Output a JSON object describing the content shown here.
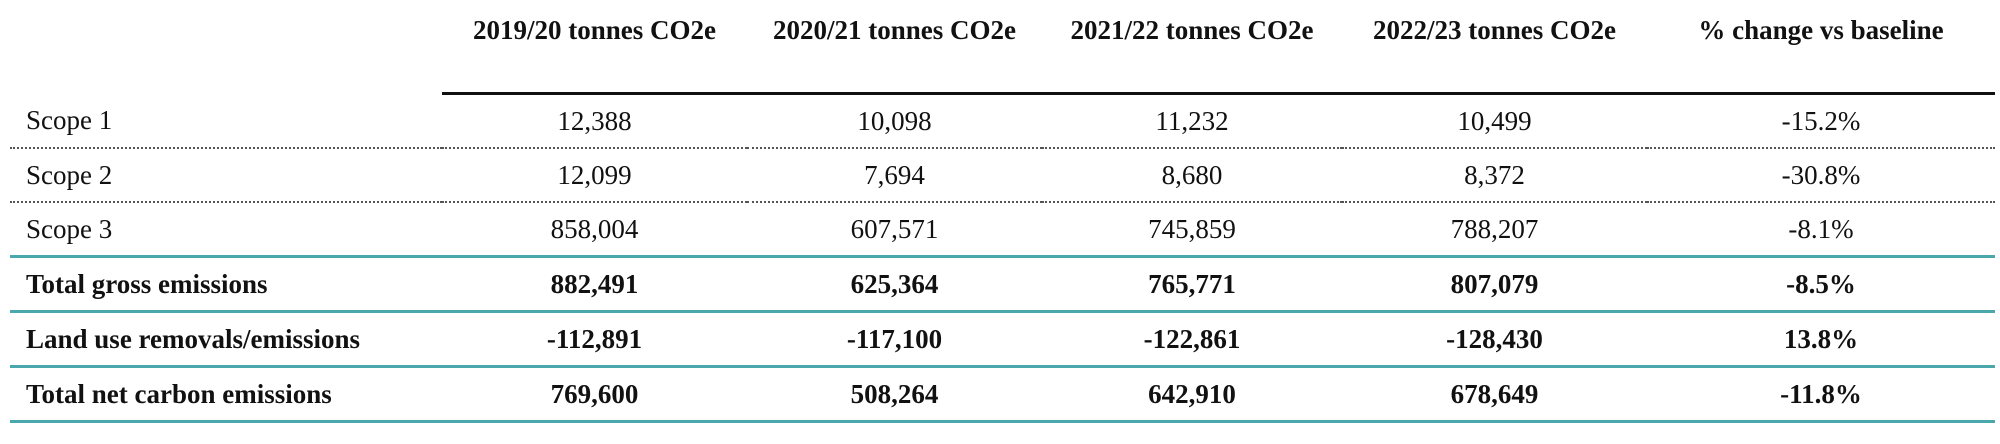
{
  "table": {
    "headers": [
      "",
      "2019/20 tonnes CO2e",
      "2020/21 tonnes CO2e",
      "2021/22 tonnes CO2e",
      "2022/23 tonnes CO2e",
      "% change vs baseline"
    ],
    "rows": [
      {
        "label": "Scope 1",
        "bold": false,
        "values": [
          "12,388",
          "10,098",
          "11,232",
          "10,499",
          "-15.2%"
        ]
      },
      {
        "label": "Scope 2",
        "bold": false,
        "values": [
          "12,099",
          "7,694",
          "8,680",
          "8,372",
          "-30.8%"
        ]
      },
      {
        "label": "Scope 3",
        "bold": false,
        "values": [
          "858,004",
          "607,571",
          "745,859",
          "788,207",
          "-8.1%"
        ]
      },
      {
        "label": "Total gross emissions",
        "bold": true,
        "values": [
          "882,491",
          "625,364",
          "765,771",
          "807,079",
          "-8.5%"
        ]
      },
      {
        "label": "Land use removals/emissions",
        "bold": true,
        "values": [
          "-112,891",
          "-117,100",
          "-122,861",
          "-128,430",
          "13.8%"
        ]
      },
      {
        "label": "Total net carbon emissions",
        "bold": true,
        "values": [
          "769,600",
          "508,264",
          "642,910",
          "678,649",
          "-11.8%"
        ]
      }
    ]
  },
  "colors": {
    "rule_dark": "#111111",
    "rule_teal": "#4aa8ac",
    "dotted": "#555555"
  }
}
